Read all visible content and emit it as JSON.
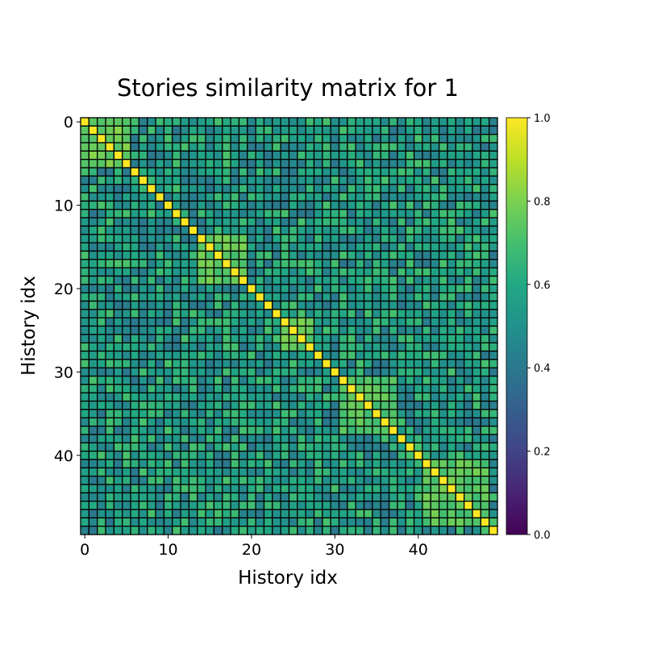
{
  "chart_data": {
    "type": "heatmap",
    "title": "Stories similarity matrix for 1",
    "xlabel": "History idx",
    "ylabel": "History idx",
    "n": 50,
    "xticks": [
      0,
      10,
      20,
      30,
      40
    ],
    "yticks": [
      0,
      10,
      20,
      30,
      40
    ],
    "colormap": "viridis",
    "vmin": 0.0,
    "vmax": 1.0,
    "colorbar_ticks": [
      "0.0",
      "0.2",
      "0.4",
      "0.6",
      "0.8",
      "1.0"
    ],
    "cell_edge_color": "#000000",
    "diagonal_value": 1.0,
    "blocks": [
      {
        "range": [
          0,
          5
        ],
        "value": 0.78
      },
      {
        "range": [
          14,
          19
        ],
        "value": 0.74
      },
      {
        "range": [
          24,
          27
        ],
        "value": 0.76
      },
      {
        "range": [
          31,
          37
        ],
        "value": 0.72
      },
      {
        "range": [
          41,
          48
        ],
        "value": 0.74
      }
    ],
    "background_value": 0.55
  }
}
